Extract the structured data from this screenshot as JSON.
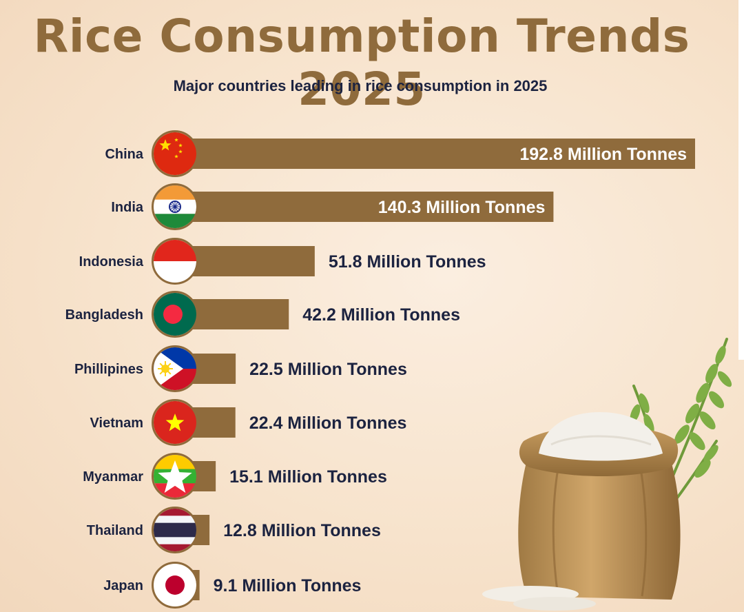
{
  "header": {
    "title": "Rice Consumption Trends 2025",
    "subtitle": "Major countries leading in rice consumption in 2025"
  },
  "colors": {
    "bar": "#8f6b3c",
    "title": "#8f6b3c",
    "label_dark": "#1c2340",
    "label_light": "#ffffff"
  },
  "chart_data": {
    "type": "bar",
    "orientation": "horizontal",
    "title": "Rice Consumption Trends 2025",
    "subtitle": "Major countries leading in rice consumption in 2025",
    "categories": [
      "China",
      "India",
      "Indonesia",
      "Bangladesh",
      "Phillipines",
      "Vietnam",
      "Myanmar",
      "Thailand",
      "Japan"
    ],
    "values": [
      192.8,
      140.3,
      51.8,
      42.2,
      22.5,
      22.4,
      15.1,
      12.8,
      9.1
    ],
    "unit": "Million Tonnes",
    "value_labels": [
      "192.8 Million Tonnes",
      "140.3 Million Tonnes",
      "51.8 Million Tonnes",
      "42.2 Million Tonnes",
      "22.5 Million Tonnes",
      "22.4 Million Tonnes",
      "15.1 Million Tonnes",
      "12.8 Million Tonnes",
      "9.1 Million Tonnes"
    ],
    "flags": [
      "china-flag-icon",
      "india-flag-icon",
      "indonesia-flag-icon",
      "bangladesh-flag-icon",
      "philippines-flag-icon",
      "vietnam-flag-icon",
      "myanmar-flag-icon",
      "thailand-flag-icon",
      "japan-flag-icon"
    ],
    "xlabel": "",
    "ylabel": "",
    "grid": false,
    "legend": "none"
  },
  "decoration": {
    "illustration": "rice-sack-with-rice-stalks-icon"
  }
}
